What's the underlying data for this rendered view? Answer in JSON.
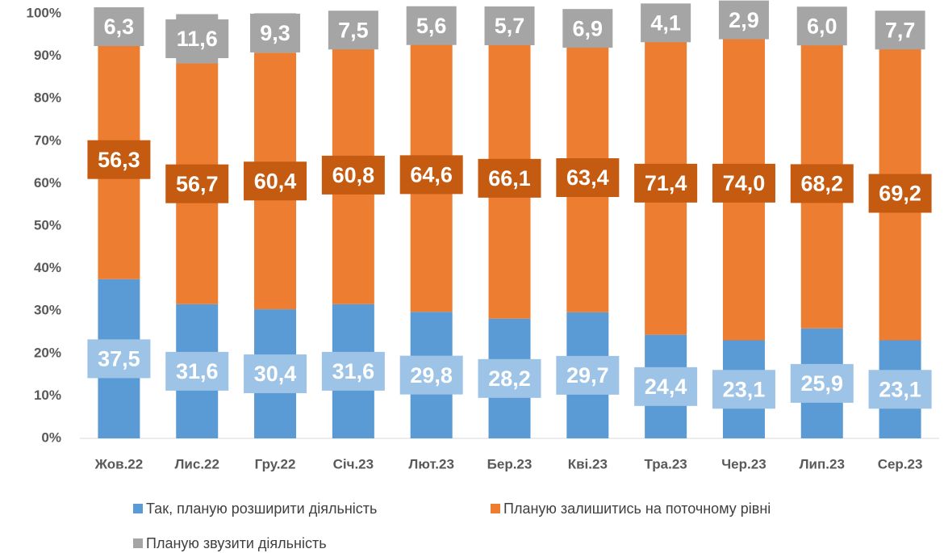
{
  "chart_data": {
    "type": "stacked_bar",
    "categories": [
      "Жов.22",
      "Лис.22",
      "Гру.22",
      "Січ.23",
      "Лют.23",
      "Бер.23",
      "Кві.23",
      "Тра.23",
      "Чер.23",
      "Лип.23",
      "Сер.23"
    ],
    "series": [
      {
        "name": "Так, планую розширити діяльність",
        "color": "#5b9bd5",
        "label_color": "#9dc3e6",
        "values": [
          37.5,
          31.6,
          30.4,
          31.6,
          29.8,
          28.2,
          29.7,
          24.4,
          23.1,
          25.9,
          23.1
        ],
        "value_labels": [
          "37,5",
          "31,6",
          "30,4",
          "31,6",
          "29,8",
          "28,2",
          "29,7",
          "24,4",
          "23,1",
          "25,9",
          "23,1"
        ]
      },
      {
        "name": "Планую залишитись на поточному рівні",
        "color": "#ed7d31",
        "label_color": "#c55a11",
        "values": [
          56.3,
          56.7,
          60.4,
          60.8,
          64.6,
          66.1,
          63.4,
          71.4,
          74.0,
          68.2,
          69.2
        ],
        "value_labels": [
          "56,3",
          "56,7",
          "60,4",
          "60,8",
          "64,6",
          "66,1",
          "63,4",
          "71,4",
          "74,0",
          "68,2",
          "69,2"
        ]
      },
      {
        "name": "Планую звузити діяльність",
        "color": "#a5a5a5",
        "label_color": "#a5a5a5",
        "values": [
          6.3,
          11.6,
          9.3,
          7.5,
          5.6,
          5.7,
          6.9,
          4.1,
          2.9,
          6.0,
          7.7
        ],
        "value_labels": [
          "6,3",
          "11,6",
          "9,3",
          "7,5",
          "5,6",
          "5,7",
          "6,9",
          "4,1",
          "2,9",
          "6,0",
          "7,7"
        ]
      }
    ],
    "ylim": [
      0,
      100
    ],
    "yticks": [
      {
        "value": 0,
        "label": "0%"
      },
      {
        "value": 10,
        "label": "10%"
      },
      {
        "value": 20,
        "label": "20%"
      },
      {
        "value": 30,
        "label": "30%"
      },
      {
        "value": 40,
        "label": "40%"
      },
      {
        "value": 50,
        "label": "50%"
      },
      {
        "value": 60,
        "label": "60%"
      },
      {
        "value": 70,
        "label": "70%"
      },
      {
        "value": 80,
        "label": "80%"
      },
      {
        "value": 90,
        "label": "90%"
      },
      {
        "value": 100,
        "label": "100%"
      }
    ],
    "grid": false
  }
}
